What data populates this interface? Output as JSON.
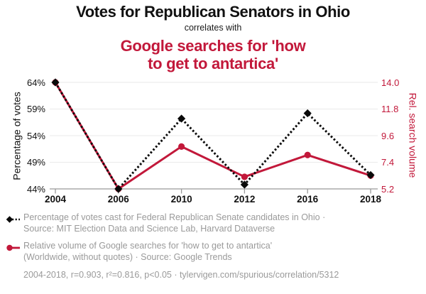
{
  "header": {
    "title": "Votes for Republican Senators in Ohio",
    "connector": "correlates with",
    "subtitle_lines": [
      "Google searches for 'how",
      "to get to antartica'"
    ]
  },
  "chart_data": {
    "type": "line",
    "title": "Votes for Republican Senators in Ohio",
    "subtitle": "Google searches for 'how to get to antartica'",
    "x_categories": [
      "2004",
      "2006",
      "2010",
      "2012",
      "2016",
      "2018"
    ],
    "left_axis": {
      "label": "Percentage of votes",
      "min": 44,
      "max": 64,
      "ticks": [
        "64%",
        "59%",
        "54%",
        "49%",
        "44%"
      ]
    },
    "right_axis": {
      "label": "Rel. search volume",
      "min": 5.2,
      "max": 14.0,
      "ticks": [
        "14.0",
        "11.8",
        "9.6",
        "7.4",
        "5.2"
      ]
    },
    "grid": "horizontal",
    "legend_position": "bottom",
    "series": [
      {
        "name": "Percentage of votes cast for Federal Republican Senate candidates in Ohio",
        "axis": "left",
        "color": "#0a0a0a",
        "line_style": "dotted",
        "marker": "diamond",
        "values": [
          64.0,
          44.0,
          57.2,
          44.8,
          58.2,
          46.6
        ]
      },
      {
        "name": "Relative volume of Google searches for 'how to get to antartica'",
        "axis": "right",
        "color": "#c2183a",
        "line_style": "solid",
        "marker": "circle",
        "values": [
          14.0,
          5.2,
          8.7,
          6.2,
          8.0,
          6.3
        ]
      }
    ]
  },
  "legend": {
    "items": [
      {
        "icon": "black-diamond-dotted-line",
        "lines": [
          "Percentage of votes cast for Federal Republican Senate candidates in Ohio ·",
          "Source: MIT Election Data and Science Lab, Harvard Dataverse"
        ]
      },
      {
        "icon": "red-circle-solid-line",
        "lines": [
          "Relative volume of Google searches for 'how to get to antartica'",
          "(Worldwide, without quotes) · Source: Google Trends"
        ]
      }
    ],
    "footer": "2004-2018, r=0.903, r²=0.816, p<0.05 · tylervigen.com/spurious/correlation/5312"
  },
  "colors": {
    "accent_red": "#c2183a",
    "series_black": "#0a0a0a",
    "grid_line": "#eaeaea",
    "axis_line": "#999999",
    "legend_text": "#9a9a9a"
  }
}
